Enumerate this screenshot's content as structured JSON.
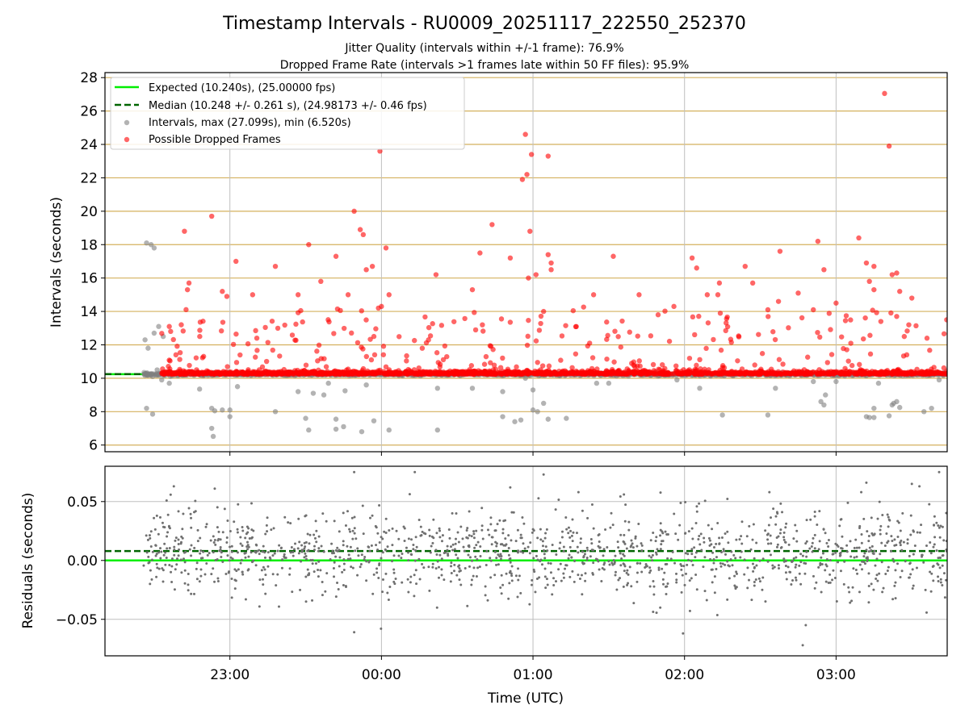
{
  "title": "Timestamp Intervals - RU0009_20251117_222550_252370",
  "subtitle_jitter": "Jitter Quality (intervals within +/-1 frame): 76.9%",
  "subtitle_dropped": "Dropped Frame Rate (intervals >1 frames late within 50 FF files): 95.9%",
  "colors": {
    "expected": "#00ee00",
    "median": "#006400",
    "intervals": "#808080",
    "dropped": "#ff0000",
    "hgrid": "#d4b15e",
    "vgrid": "#bfbfbf"
  },
  "chart_data": [
    {
      "type": "scatter",
      "title": "Timestamp Intervals - RU0009_20251117_222550_252370",
      "xlabel": "",
      "ylabel": "Intervals (seconds)",
      "xlim_hours": [
        22.1756,
        27.7333
      ],
      "ylim": [
        5.6,
        28.3
      ],
      "yticks": [
        6,
        8,
        10,
        12,
        14,
        16,
        18,
        20,
        22,
        24,
        26,
        28
      ],
      "xticks_hours": [
        23,
        24,
        25,
        26,
        27
      ],
      "expected_interval": 10.24,
      "median_interval": 10.248,
      "legend_position": "upper-left",
      "legend": [
        "Expected (10.240s), (25.00000 fps)",
        "Median (10.248 +/- 0.261 s), (24.98173 +/- 0.46 fps)",
        "Intervals, max (27.099s), min (6.520s)",
        "Possible Dropped Frames"
      ],
      "series": [
        {
          "name": "Intervals",
          "x_range_hours": [
            22.43,
            27.73
          ],
          "baseline": 10.24,
          "samples": 1900,
          "outliers": [
            [
              22.45,
              18.1
            ],
            [
              22.48,
              18.0
            ],
            [
              22.5,
              17.8
            ],
            [
              22.44,
              12.3
            ],
            [
              22.46,
              11.8
            ],
            [
              22.53,
              13.1
            ],
            [
              22.56,
              12.5
            ],
            [
              22.5,
              12.7
            ],
            [
              22.45,
              8.2
            ],
            [
              22.49,
              7.85
            ],
            [
              22.52,
              10.5
            ],
            [
              22.55,
              9.9
            ],
            [
              22.6,
              9.7
            ],
            [
              22.8,
              9.35
            ],
            [
              22.88,
              8.2
            ],
            [
              22.9,
              8.05
            ],
            [
              22.88,
              7.0
            ],
            [
              22.89,
              6.52
            ],
            [
              22.95,
              8.1
            ],
            [
              23.0,
              8.1
            ],
            [
              23.0,
              7.7
            ],
            [
              23.05,
              9.5
            ],
            [
              23.3,
              8.0
            ],
            [
              23.45,
              9.2
            ],
            [
              23.5,
              7.6
            ],
            [
              23.52,
              6.9
            ],
            [
              23.55,
              9.1
            ],
            [
              23.62,
              9.0
            ],
            [
              23.65,
              9.7
            ],
            [
              23.7,
              7.55
            ],
            [
              23.7,
              6.95
            ],
            [
              23.75,
              7.1
            ],
            [
              23.76,
              9.25
            ],
            [
              23.87,
              6.8
            ],
            [
              23.9,
              9.6
            ],
            [
              23.95,
              7.45
            ],
            [
              24.05,
              6.9
            ],
            [
              24.37,
              9.4
            ],
            [
              24.37,
              6.9
            ],
            [
              24.6,
              9.4
            ],
            [
              24.8,
              7.7
            ],
            [
              24.8,
              9.2
            ],
            [
              24.88,
              7.4
            ],
            [
              24.92,
              7.5
            ],
            [
              24.95,
              10.0
            ],
            [
              25.0,
              8.1
            ],
            [
              25.0,
              9.3
            ],
            [
              25.03,
              8.0
            ],
            [
              25.07,
              8.5
            ],
            [
              25.1,
              7.55
            ],
            [
              25.22,
              7.6
            ],
            [
              25.42,
              9.7
            ],
            [
              25.5,
              9.7
            ],
            [
              25.95,
              9.9
            ],
            [
              26.1,
              9.4
            ],
            [
              26.25,
              7.8
            ],
            [
              26.55,
              7.8
            ],
            [
              26.6,
              9.4
            ],
            [
              26.85,
              9.8
            ],
            [
              26.9,
              8.6
            ],
            [
              26.92,
              8.4
            ],
            [
              26.93,
              9.0
            ],
            [
              27.0,
              9.8
            ],
            [
              27.2,
              7.7
            ],
            [
              27.22,
              7.65
            ],
            [
              27.25,
              8.2
            ],
            [
              27.25,
              7.65
            ],
            [
              27.28,
              9.7
            ],
            [
              27.35,
              7.75
            ],
            [
              27.37,
              8.4
            ],
            [
              27.38,
              8.5
            ],
            [
              27.4,
              8.6
            ],
            [
              27.42,
              8.25
            ],
            [
              27.58,
              8.0
            ],
            [
              27.63,
              8.2
            ],
            [
              27.68,
              9.9
            ]
          ]
        },
        {
          "name": "Possible Dropped Frames",
          "points": [
            [
              22.7,
              18.8
            ],
            [
              22.88,
              19.7
            ],
            [
              22.72,
              15.3
            ],
            [
              22.73,
              15.7
            ],
            [
              22.6,
              13.1
            ],
            [
              22.95,
              15.2
            ],
            [
              22.98,
              14.9
            ],
            [
              23.04,
              17.0
            ],
            [
              23.15,
              15.0
            ],
            [
              23.3,
              16.7
            ],
            [
              23.45,
              15.0
            ],
            [
              23.52,
              18.0
            ],
            [
              23.6,
              15.8
            ],
            [
              23.7,
              17.3
            ],
            [
              23.78,
              15.0
            ],
            [
              23.82,
              20.0
            ],
            [
              23.86,
              18.9
            ],
            [
              23.88,
              18.6
            ],
            [
              23.9,
              16.5
            ],
            [
              23.94,
              16.7
            ],
            [
              23.98,
              14.2
            ],
            [
              24.0,
              14.3
            ],
            [
              24.03,
              17.8
            ],
            [
              24.05,
              15.0
            ],
            [
              23.99,
              23.6
            ],
            [
              24.36,
              16.2
            ],
            [
              24.6,
              15.3
            ],
            [
              24.65,
              17.5
            ],
            [
              24.73,
              19.2
            ],
            [
              24.85,
              17.2
            ],
            [
              24.93,
              21.9
            ],
            [
              24.96,
              22.2
            ],
            [
              24.95,
              24.6
            ],
            [
              24.99,
              23.4
            ],
            [
              25.1,
              23.3
            ],
            [
              24.98,
              18.8
            ],
            [
              24.97,
              16.0
            ],
            [
              25.02,
              16.2
            ],
            [
              25.1,
              17.4
            ],
            [
              25.12,
              16.5
            ],
            [
              25.12,
              16.9
            ],
            [
              25.07,
              14.0
            ],
            [
              25.4,
              15.0
            ],
            [
              25.53,
              17.3
            ],
            [
              25.7,
              15.0
            ],
            [
              25.93,
              14.3
            ],
            [
              26.05,
              17.2
            ],
            [
              26.08,
              16.6
            ],
            [
              26.15,
              15.0
            ],
            [
              26.22,
              15.0
            ],
            [
              26.23,
              15.7
            ],
            [
              26.4,
              16.7
            ],
            [
              26.45,
              15.7
            ],
            [
              26.55,
              14.1
            ],
            [
              26.62,
              14.6
            ],
            [
              26.63,
              17.6
            ],
            [
              26.75,
              15.1
            ],
            [
              26.85,
              14.1
            ],
            [
              26.88,
              18.2
            ],
            [
              26.92,
              16.5
            ],
            [
              27.0,
              14.5
            ],
            [
              27.15,
              18.4
            ],
            [
              27.2,
              16.9
            ],
            [
              27.22,
              15.8
            ],
            [
              27.25,
              16.7
            ],
            [
              27.37,
              16.2
            ],
            [
              27.4,
              16.3
            ],
            [
              27.42,
              15.2
            ],
            [
              27.5,
              14.8
            ],
            [
              27.25,
              15.3
            ],
            [
              27.4,
              13.7
            ],
            [
              27.45,
              12.5
            ],
            [
              27.32,
              27.05
            ],
            [
              27.35,
              23.9
            ],
            [
              27.48,
              13.2
            ],
            [
              27.6,
              12.4
            ],
            [
              27.73,
              13.5
            ]
          ],
          "near_baseline_samples": 1800
        }
      ]
    },
    {
      "type": "scatter",
      "xlabel": "Time (UTC)",
      "ylabel": "Residuals (seconds)",
      "xlim_hours": [
        22.1756,
        27.7333
      ],
      "ylim": [
        -0.081,
        0.08
      ],
      "yticks": [
        0.05,
        0.0,
        -0.05
      ],
      "ytick_labels": [
        "0.05",
        "0.00",
        "−0.05"
      ],
      "xticks_hours": [
        23,
        24,
        25,
        26,
        27
      ],
      "xtick_labels": [
        "23:00",
        "00:00",
        "01:00",
        "02:00",
        "03:00"
      ],
      "expected_residual": 0.0,
      "median_residual": 0.008,
      "series": [
        {
          "name": "Residuals",
          "samples": 1400,
          "spread_sd": 0.018,
          "center": 0.006,
          "outliers": [
            [
              22.63,
              0.063
            ],
            [
              22.9,
              0.061
            ],
            [
              23.82,
              0.075
            ],
            [
              23.82,
              -0.061
            ],
            [
              24.22,
              0.075
            ],
            [
              24.85,
              0.062
            ],
            [
              25.07,
              0.073
            ],
            [
              25.3,
              0.058
            ],
            [
              25.6,
              0.056
            ],
            [
              25.99,
              -0.062
            ],
            [
              26.78,
              -0.072
            ],
            [
              26.8,
              -0.055
            ],
            [
              27.5,
              0.065
            ],
            [
              27.55,
              0.063
            ],
            [
              27.68,
              0.075
            ],
            [
              27.2,
              0.066
            ]
          ]
        }
      ]
    }
  ]
}
